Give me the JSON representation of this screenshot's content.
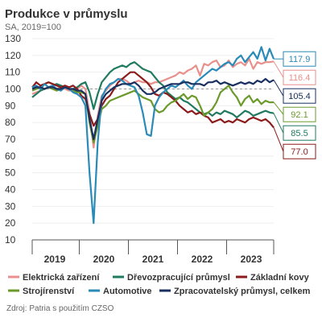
{
  "chart_data": {
    "type": "line",
    "title": "Produkce v průmyslu",
    "subtitle": "SA, 2019=100",
    "source": "Zdroj: Patria s použitím CZSO",
    "ylim": [
      10,
      130
    ],
    "yticks": [
      10,
      20,
      30,
      40,
      50,
      60,
      70,
      80,
      90,
      100,
      110,
      120,
      130
    ],
    "xlim": [
      "2019-01",
      "2023-12"
    ],
    "x_tick_labels": [
      "2019",
      "2020",
      "2021",
      "2022",
      "2023"
    ],
    "reference_line": 100,
    "legend_position": "bottom",
    "series": [
      {
        "name": "Elektrická zařízení",
        "color": "#e8908c",
        "end_label": "116.4",
        "values": [
          97,
          98,
          99,
          100,
          101,
          100,
          100,
          101,
          100,
          99,
          100,
          100,
          102,
          100,
          86,
          65,
          84,
          96,
          99,
          102,
          104,
          106,
          106,
          105,
          103,
          104,
          105,
          104,
          104,
          103,
          104,
          104,
          105,
          106,
          107,
          108,
          110,
          109,
          111,
          112,
          114,
          108,
          115,
          114,
          116,
          117,
          113,
          114,
          117,
          113,
          115,
          116,
          114,
          118,
          112,
          116,
          115,
          116,
          116,
          116.4
        ]
      },
      {
        "name": "Dřevozpracující průmysl",
        "color": "#1f7a5f",
        "end_label": "85.5",
        "values": [
          95,
          97,
          99,
          100,
          101,
          102,
          103,
          102,
          101,
          100,
          100,
          101,
          103,
          104,
          98,
          88,
          97,
          104,
          107,
          110,
          112,
          113,
          114,
          113,
          115,
          116,
          114,
          112,
          111,
          110,
          107,
          104,
          102,
          98,
          96,
          94,
          95,
          93,
          92,
          90,
          88,
          86,
          85,
          86,
          84,
          86,
          85,
          87,
          86,
          85,
          83,
          85,
          87,
          86,
          84,
          85,
          86,
          87,
          86,
          85.5
        ]
      },
      {
        "name": "Základní kovy",
        "color": "#8b1a1a",
        "end_label": "77.0",
        "values": [
          101,
          104,
          102,
          103,
          104,
          103,
          102,
          101,
          102,
          101,
          102,
          100,
          96,
          94,
          85,
          78,
          82,
          90,
          94,
          96,
          100,
          104,
          106,
          108,
          110,
          110,
          108,
          106,
          104,
          101,
          97,
          96,
          98,
          97,
          95,
          93,
          90,
          88,
          86,
          87,
          85,
          86,
          84,
          83,
          80,
          81,
          82,
          80,
          81,
          80,
          82,
          81,
          80,
          82,
          83,
          82,
          81,
          82,
          80,
          77.0
        ]
      },
      {
        "name": "Strojírenství",
        "color": "#6b9a2a",
        "end_label": "92.1",
        "values": [
          99,
          100,
          101,
          100,
          101,
          100,
          99,
          100,
          101,
          100,
          99,
          98,
          98,
          97,
          80,
          68,
          78,
          88,
          90,
          93,
          94,
          95,
          96,
          97,
          98,
          99,
          97,
          95,
          94,
          93,
          88,
          86,
          87,
          90,
          92,
          93,
          95,
          97,
          94,
          96,
          95,
          90,
          84,
          86,
          88,
          92,
          98,
          100,
          102,
          98,
          95,
          90,
          94,
          96,
          92,
          94,
          91,
          93,
          92,
          92.1
        ]
      },
      {
        "name": "Automotive",
        "color": "#2a8ab8",
        "end_label": "117.9",
        "values": [
          101,
          102,
          100,
          103,
          101,
          102,
          100,
          99,
          101,
          100,
          98,
          97,
          95,
          90,
          50,
          20,
          68,
          95,
          100,
          103,
          104,
          106,
          105,
          103,
          102,
          101,
          96,
          86,
          73,
          72,
          90,
          95,
          98,
          100,
          102,
          101,
          103,
          105,
          102,
          100,
          104,
          106,
          108,
          110,
          112,
          111,
          113,
          115,
          116,
          114,
          118,
          120,
          116,
          119,
          122,
          118,
          125,
          117,
          124,
          117.9
        ]
      },
      {
        "name": "Zpracovatelský průmysl, celkem",
        "color": "#1a3060",
        "end_label": "105.4",
        "values": [
          100,
          101,
          101,
          100,
          101,
          101,
          100,
          100,
          101,
          100,
          100,
          99,
          99,
          97,
          82,
          70,
          82,
          93,
          97,
          99,
          101,
          102,
          103,
          103,
          103,
          104,
          102,
          99,
          97,
          97,
          98,
          100,
          101,
          102,
          103,
          103,
          103,
          104,
          104,
          103,
          103,
          103,
          102,
          104,
          104,
          105,
          103,
          104,
          103,
          102,
          103,
          104,
          103,
          104,
          103,
          105,
          104,
          106,
          104,
          105.4
        ]
      }
    ],
    "legend_rows": [
      [
        "Elektrická zařízení",
        "Dřevozpracující průmysl",
        "Základní kovy"
      ],
      [
        "Strojírenství",
        "Automotive",
        "Zpracovatelský průmysl, celkem"
      ]
    ]
  }
}
